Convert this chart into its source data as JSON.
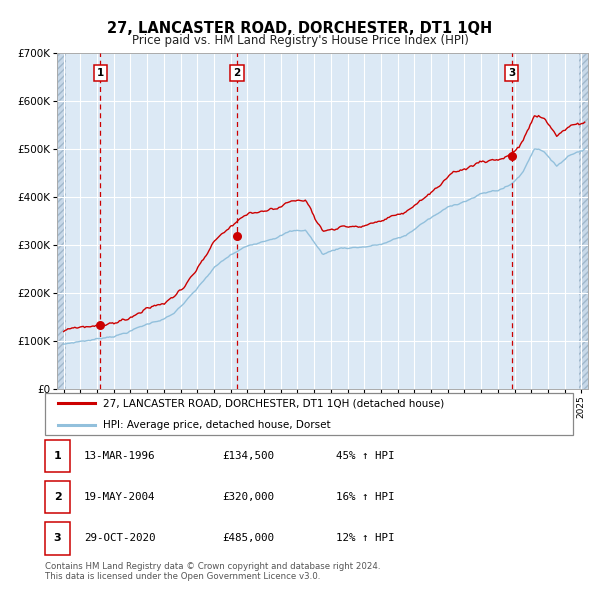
{
  "title": "27, LANCASTER ROAD, DORCHESTER, DT1 1QH",
  "subtitle": "Price paid vs. HM Land Registry's House Price Index (HPI)",
  "legend_label_red": "27, LANCASTER ROAD, DORCHESTER, DT1 1QH (detached house)",
  "legend_label_blue": "HPI: Average price, detached house, Dorset",
  "sales": [
    {
      "num": 1,
      "date_label": "13-MAR-1996",
      "year": 1996.2,
      "price": 134500,
      "pct": "45%",
      "dir": "↑"
    },
    {
      "num": 2,
      "date_label": "19-MAY-2004",
      "year": 2004.38,
      "price": 320000,
      "pct": "16%",
      "dir": "↑"
    },
    {
      "num": 3,
      "date_label": "29-OCT-2020",
      "year": 2020.83,
      "price": 485000,
      "pct": "12%",
      "dir": "↑"
    }
  ],
  "footer1": "Contains HM Land Registry data © Crown copyright and database right 2024.",
  "footer2": "This data is licensed under the Open Government Licence v3.0.",
  "ylim": [
    0,
    700000
  ],
  "yticks": [
    0,
    100000,
    200000,
    300000,
    400000,
    500000,
    600000,
    700000
  ],
  "ytick_labels": [
    "£0",
    "£100K",
    "£200K",
    "£300K",
    "£400K",
    "£500K",
    "£600K",
    "£700K"
  ],
  "xlim_left": 1993.6,
  "xlim_right": 2025.4,
  "background_color": "#dce9f5",
  "hatch_color": "#b8cfe0",
  "grid_color": "#ffffff",
  "red_line_color": "#cc0000",
  "blue_line_color": "#92c0dc",
  "dot_color": "#cc0000",
  "vline_color": "#cc0000",
  "box_color": "#cc0000",
  "title_fontsize": 10.5,
  "subtitle_fontsize": 8.5
}
